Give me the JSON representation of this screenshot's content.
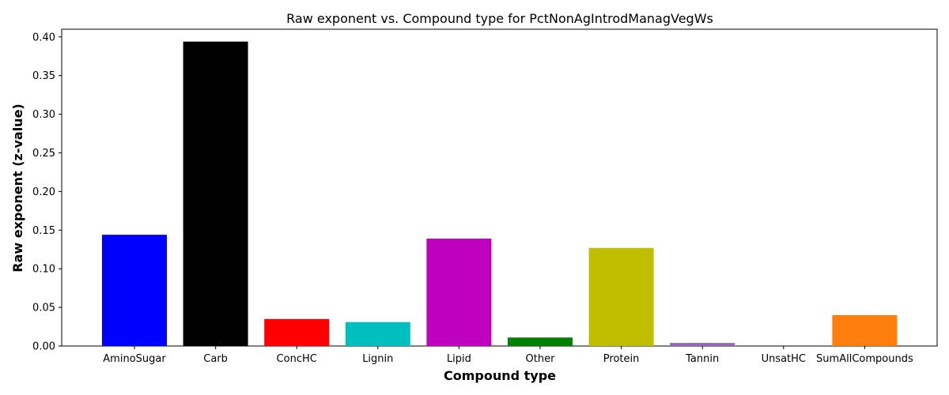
{
  "chart_data": {
    "type": "bar",
    "title": "Raw exponent vs. Compound type for PctNonAgIntrodManagVegWs",
    "xlabel": "Compound type",
    "ylabel": "Raw exponent (z-value)",
    "categories": [
      "AminoSugar",
      "Carb",
      "ConcHC",
      "Lignin",
      "Lipid",
      "Other",
      "Protein",
      "Tannin",
      "UnsatHC",
      "SumAllCompounds"
    ],
    "values": [
      0.144,
      0.394,
      0.035,
      0.031,
      0.139,
      0.011,
      0.127,
      0.004,
      0.0,
      0.04
    ],
    "colors": [
      "#0000ff",
      "#000000",
      "#ff0000",
      "#00bfbf",
      "#bf00bf",
      "#008000",
      "#bfbf00",
      "#9467bd",
      "#8c564b",
      "#ff7f0e"
    ],
    "ylim": [
      0,
      0.41
    ],
    "yticks": [
      0.0,
      0.05,
      0.1,
      0.15,
      0.2,
      0.25,
      0.3,
      0.35,
      0.4
    ],
    "ytick_labels": [
      "0.00",
      "0.05",
      "0.10",
      "0.15",
      "0.20",
      "0.25",
      "0.30",
      "0.35",
      "0.40"
    ],
    "grid": false,
    "legend": "none"
  }
}
